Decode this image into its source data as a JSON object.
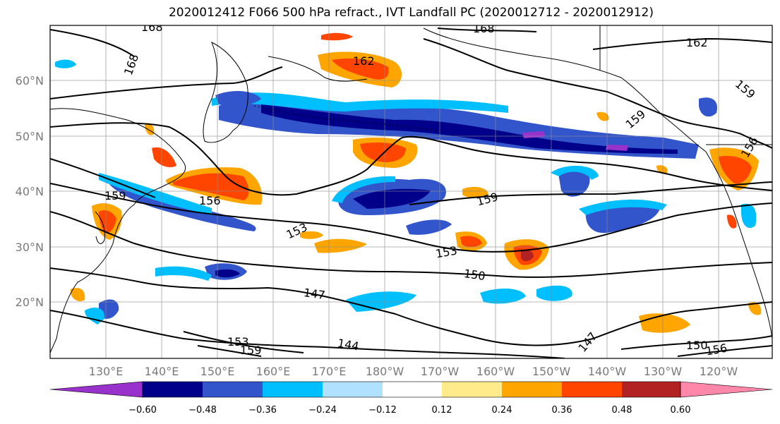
{
  "title": "2020012412 F066 500 hPa refract., IVT Landfall PC (2020012712 - 2020012912)",
  "lat_labels": [
    "60°N",
    "50°N",
    "40°N",
    "30°N",
    "20°N"
  ],
  "lon_labels": [
    "130°E",
    "140°E",
    "150°E",
    "160°E",
    "170°E",
    "180°W",
    "170°W",
    "160°W",
    "150°W",
    "140°W",
    "130°W",
    "120°W"
  ],
  "contour_labels": [
    "168",
    "168",
    "168",
    "162",
    "162",
    "159",
    "159",
    "159",
    "159",
    "156",
    "156",
    "156",
    "153",
    "153",
    "153",
    "150",
    "150",
    "147",
    "147",
    "144",
    "159"
  ],
  "colorbar": {
    "tick_labels": [
      "−0.60",
      "−0.48",
      "−0.36",
      "−0.24",
      "−0.12",
      "0.12",
      "0.24",
      "0.36",
      "0.48",
      "0.60"
    ],
    "colors": [
      "#9932cc",
      "#00008b",
      "#3355cc",
      "#00bfff",
      "#b0e2ff",
      "#ffffff",
      "#ffeb8a",
      "#ffa500",
      "#ff4500",
      "#b22222",
      "#ff88aa"
    ]
  }
}
